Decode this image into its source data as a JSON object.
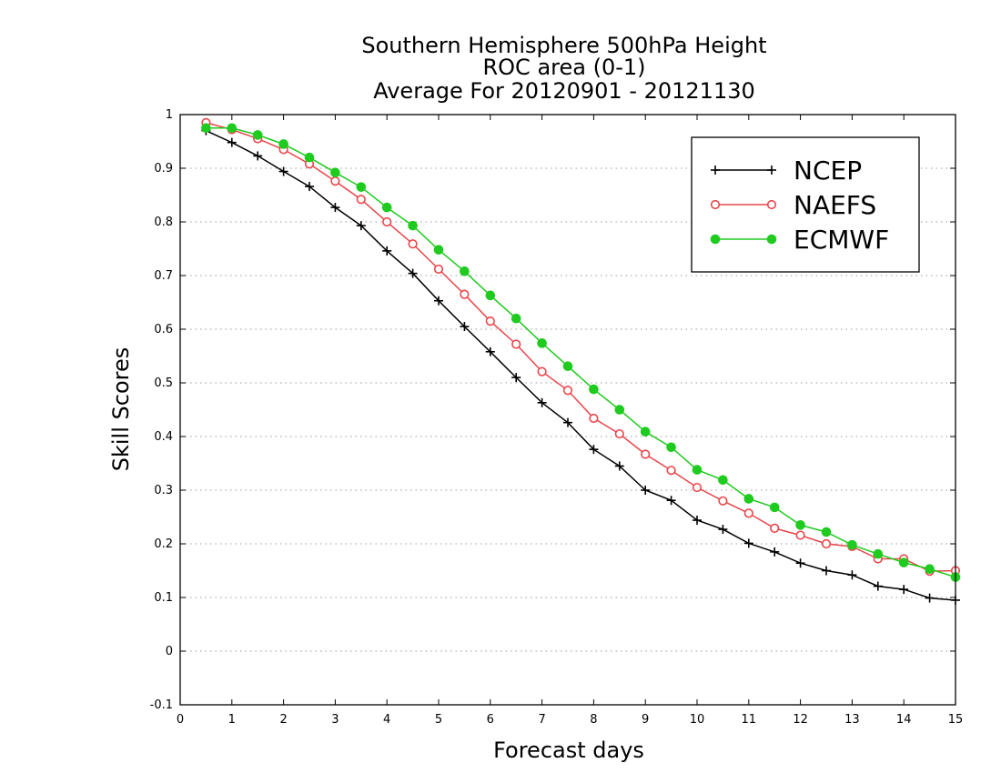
{
  "chart_data": {
    "type": "line",
    "title_lines": [
      "Southern Hemisphere 500hPa Height",
      "ROC area (0-1)",
      "Average For 20120901 - 20121130"
    ],
    "xlabel": "Forecast days",
    "ylabel": "Skill Scores",
    "xlim": [
      0,
      15
    ],
    "ylim": [
      -0.1,
      1
    ],
    "x_ticks": [
      "0",
      "1",
      "2",
      "3",
      "4",
      "5",
      "6",
      "7",
      "8",
      "9",
      "10",
      "11",
      "12",
      "13",
      "14",
      "15"
    ],
    "y_ticks": [
      "-0.1",
      "0",
      "0.1",
      "0.2",
      "0.3",
      "0.4",
      "0.5",
      "0.6",
      "0.7",
      "0.8",
      "0.9",
      "1"
    ],
    "grid": "horizontal dotted",
    "legend_position": "top-right",
    "x": [
      0.5,
      1,
      1.5,
      2,
      2.5,
      3,
      3.5,
      4,
      4.5,
      5,
      5.5,
      6,
      6.5,
      7,
      7.5,
      8,
      8.5,
      9,
      9.5,
      10,
      10.5,
      11,
      11.5,
      12,
      12.5,
      13,
      13.5,
      14,
      14.5,
      15
    ],
    "series": [
      {
        "name": "NCEP",
        "color": "#000000",
        "marker": "plus",
        "values": [
          0.97,
          0.948,
          0.923,
          0.894,
          0.866,
          0.827,
          0.793,
          0.746,
          0.704,
          0.653,
          0.605,
          0.558,
          0.51,
          0.463,
          0.426,
          0.376,
          0.345,
          0.3,
          0.281,
          0.244,
          0.227,
          0.201,
          0.185,
          0.164,
          0.15,
          0.142,
          0.121,
          0.115,
          0.099,
          0.095
        ]
      },
      {
        "name": "NAEFS",
        "color": "#e8464a",
        "marker": "open-circle",
        "values": [
          0.985,
          0.972,
          0.955,
          0.935,
          0.908,
          0.876,
          0.842,
          0.8,
          0.759,
          0.712,
          0.665,
          0.615,
          0.572,
          0.521,
          0.486,
          0.434,
          0.405,
          0.367,
          0.337,
          0.305,
          0.28,
          0.257,
          0.229,
          0.216,
          0.2,
          0.195,
          0.172,
          0.172,
          0.149,
          0.15
        ]
      },
      {
        "name": "ECMWF",
        "color": "#1ecb1e",
        "marker": "filled-circle",
        "values": [
          0.975,
          0.975,
          0.962,
          0.945,
          0.92,
          0.892,
          0.865,
          0.827,
          0.793,
          0.748,
          0.708,
          0.663,
          0.62,
          0.574,
          0.531,
          0.488,
          0.45,
          0.409,
          0.38,
          0.338,
          0.319,
          0.284,
          0.268,
          0.235,
          0.222,
          0.198,
          0.181,
          0.165,
          0.153,
          0.138
        ]
      }
    ]
  }
}
